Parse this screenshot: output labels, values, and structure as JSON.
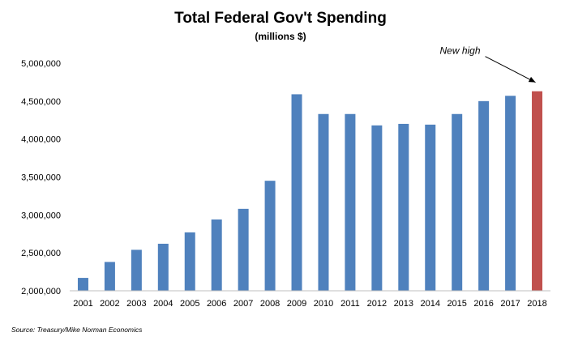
{
  "chart_data": {
    "type": "bar",
    "title": "Total Federal Gov't Spending",
    "subtitle": "(millions $)",
    "categories": [
      "2001",
      "2002",
      "2003",
      "2004",
      "2005",
      "2006",
      "2007",
      "2008",
      "2009",
      "2010",
      "2011",
      "2012",
      "2013",
      "2014",
      "2015",
      "2016",
      "2017",
      "2018"
    ],
    "values": [
      2170000,
      2380000,
      2540000,
      2620000,
      2770000,
      2940000,
      3080000,
      3450000,
      4590000,
      4330000,
      4330000,
      4180000,
      4200000,
      4190000,
      4330000,
      4500000,
      4570000,
      4630000
    ],
    "ylim": [
      2000000,
      5000000
    ],
    "yticks": [
      2000000,
      2500000,
      3000000,
      3500000,
      4000000,
      4500000,
      5000000
    ],
    "grid": false,
    "legend": "none",
    "bar_color": "#4f81bd",
    "highlight_color": "#c0504d",
    "highlight_category": "2018",
    "annotation": {
      "text": "New high",
      "target": "2018"
    },
    "source": "Source: Treasury/Mike Norman Economics"
  }
}
